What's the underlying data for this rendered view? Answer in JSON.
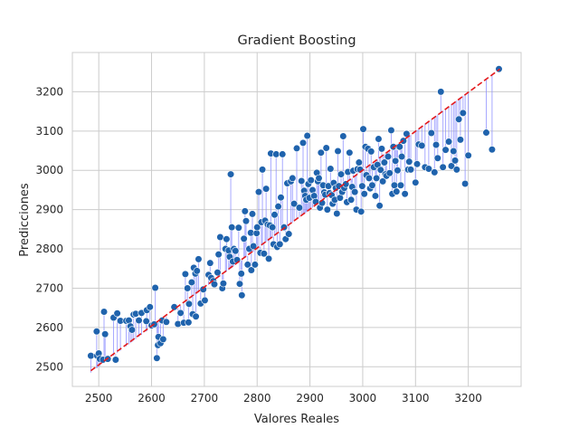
{
  "chart_data": {
    "type": "scatter",
    "title": "Gradient Boosting",
    "xlabel": "Valores Reales",
    "ylabel": "Predicciones",
    "xlim": [
      2450,
      3300
    ],
    "ylim": [
      2450,
      3300
    ],
    "xticks": [
      2500,
      2600,
      2700,
      2800,
      2900,
      3000,
      3100,
      3200
    ],
    "yticks": [
      2500,
      2600,
      2700,
      2800,
      2900,
      3000,
      3100,
      3200
    ],
    "grid": true,
    "reference_line": {
      "style": "dashed",
      "color": "#e41a1c",
      "from": [
        2485,
        2490
      ],
      "to": [
        3260,
        3258
      ]
    },
    "residual_line_color": "#8a8cff",
    "point_color": "#1f63ad",
    "points": [
      [
        2485,
        2528
      ],
      [
        2496,
        2590
      ],
      [
        2497,
        2528
      ],
      [
        2500,
        2534
      ],
      [
        2502,
        2520
      ],
      [
        2508,
        2518
      ],
      [
        2510,
        2640
      ],
      [
        2512,
        2583
      ],
      [
        2517,
        2520
      ],
      [
        2528,
        2625
      ],
      [
        2532,
        2518
      ],
      [
        2535,
        2636
      ],
      [
        2541,
        2617
      ],
      [
        2552,
        2617
      ],
      [
        2557,
        2618
      ],
      [
        2560,
        2603
      ],
      [
        2563,
        2594
      ],
      [
        2566,
        2633
      ],
      [
        2570,
        2635
      ],
      [
        2576,
        2618
      ],
      [
        2581,
        2637
      ],
      [
        2590,
        2616
      ],
      [
        2591,
        2644
      ],
      [
        2597,
        2652
      ],
      [
        2600,
        2605
      ],
      [
        2605,
        2608
      ],
      [
        2607,
        2701
      ],
      [
        2610,
        2522
      ],
      [
        2612,
        2555
      ],
      [
        2613,
        2576
      ],
      [
        2617,
        2560
      ],
      [
        2620,
        2618
      ],
      [
        2622,
        2570
      ],
      [
        2628,
        2614
      ],
      [
        2643,
        2652
      ],
      [
        2650,
        2609
      ],
      [
        2655,
        2637
      ],
      [
        2661,
        2612
      ],
      [
        2664,
        2736
      ],
      [
        2668,
        2700
      ],
      [
        2670,
        2613
      ],
      [
        2671,
        2660
      ],
      [
        2676,
        2715
      ],
      [
        2678,
        2634
      ],
      [
        2680,
        2752
      ],
      [
        2683,
        2737
      ],
      [
        2684,
        2628
      ],
      [
        2686,
        2744
      ],
      [
        2689,
        2774
      ],
      [
        2693,
        2661
      ],
      [
        2698,
        2697
      ],
      [
        2701,
        2669
      ],
      [
        2708,
        2734
      ],
      [
        2711,
        2764
      ],
      [
        2713,
        2726
      ],
      [
        2717,
        2718
      ],
      [
        2719,
        2710
      ],
      [
        2725,
        2740
      ],
      [
        2727,
        2786
      ],
      [
        2730,
        2830
      ],
      [
        2734,
        2700
      ],
      [
        2736,
        2712
      ],
      [
        2740,
        2800
      ],
      [
        2742,
        2825
      ],
      [
        2746,
        2796
      ],
      [
        2748,
        2780
      ],
      [
        2750,
        2990
      ],
      [
        2752,
        2855
      ],
      [
        2754,
        2768
      ],
      [
        2756,
        2800
      ],
      [
        2759,
        2795
      ],
      [
        2762,
        2772
      ],
      [
        2765,
        2854
      ],
      [
        2767,
        2711
      ],
      [
        2770,
        2737
      ],
      [
        2771,
        2682
      ],
      [
        2775,
        2826
      ],
      [
        2777,
        2896
      ],
      [
        2779,
        2871
      ],
      [
        2782,
        2760
      ],
      [
        2785,
        2800
      ],
      [
        2788,
        2841
      ],
      [
        2789,
        2746
      ],
      [
        2791,
        2889
      ],
      [
        2793,
        2807
      ],
      [
        2796,
        2760
      ],
      [
        2799,
        2840
      ],
      [
        2800,
        2855
      ],
      [
        2803,
        2945
      ],
      [
        2806,
        2790
      ],
      [
        2808,
        2868
      ],
      [
        2810,
        3002
      ],
      [
        2813,
        2788
      ],
      [
        2815,
        2872
      ],
      [
        2817,
        2953
      ],
      [
        2820,
        2862
      ],
      [
        2822,
        2775
      ],
      [
        2824,
        2860
      ],
      [
        2826,
        3043
      ],
      [
        2829,
        2855
      ],
      [
        2831,
        2812
      ],
      [
        2833,
        2887
      ],
      [
        2836,
        3041
      ],
      [
        2838,
        2805
      ],
      [
        2840,
        2908
      ],
      [
        2843,
        2812
      ],
      [
        2845,
        2931
      ],
      [
        2848,
        3041
      ],
      [
        2851,
        2855
      ],
      [
        2854,
        2825
      ],
      [
        2857,
        2967
      ],
      [
        2860,
        2838
      ],
      [
        2864,
        2972
      ],
      [
        2867,
        2980
      ],
      [
        2870,
        2915
      ],
      [
        2875,
        3056
      ],
      [
        2880,
        2905
      ],
      [
        2884,
        2973
      ],
      [
        2887,
        3070
      ],
      [
        2889,
        2948
      ],
      [
        2891,
        2935
      ],
      [
        2893,
        2925
      ],
      [
        2895,
        3088
      ],
      [
        2897,
        2965
      ],
      [
        2899,
        2930
      ],
      [
        2902,
        2975
      ],
      [
        2905,
        2950
      ],
      [
        2908,
        2935
      ],
      [
        2911,
        2920
      ],
      [
        2913,
        2994
      ],
      [
        2915,
        2972
      ],
      [
        2917,
        2980
      ],
      [
        2919,
        2905
      ],
      [
        2921,
        3045
      ],
      [
        2923,
        2917
      ],
      [
        2925,
        2962
      ],
      [
        2927,
        2944
      ],
      [
        2929,
        2938
      ],
      [
        2931,
        3057
      ],
      [
        2933,
        2900
      ],
      [
        2935,
        2960
      ],
      [
        2937,
        2942
      ],
      [
        2939,
        3004
      ],
      [
        2941,
        2937
      ],
      [
        2943,
        2915
      ],
      [
        2945,
        2968
      ],
      [
        2947,
        2925
      ],
      [
        2949,
        2955
      ],
      [
        2951,
        2890
      ],
      [
        2953,
        3049
      ],
      [
        2955,
        2960
      ],
      [
        2957,
        2930
      ],
      [
        2959,
        2990
      ],
      [
        2961,
        2945
      ],
      [
        2963,
        3087
      ],
      [
        2965,
        2955
      ],
      [
        2968,
        2965
      ],
      [
        2970,
        2919
      ],
      [
        2972,
        2996
      ],
      [
        2975,
        3045
      ],
      [
        2978,
        2925
      ],
      [
        2980,
        2958
      ],
      [
        2982,
        2999
      ],
      [
        2985,
        2945
      ],
      [
        2988,
        2900
      ],
      [
        2990,
        3003
      ],
      [
        2993,
        3020
      ],
      [
        2995,
        3002
      ],
      [
        2997,
        2895
      ],
      [
        2999,
        2960
      ],
      [
        3001,
        3105
      ],
      [
        3003,
        2940
      ],
      [
        3005,
        3060
      ],
      [
        3007,
        2988
      ],
      [
        3010,
        3055
      ],
      [
        3012,
        2980
      ],
      [
        3014,
        2954
      ],
      [
        3016,
        3048
      ],
      [
        3018,
        2962
      ],
      [
        3021,
        3008
      ],
      [
        3024,
        2935
      ],
      [
        3026,
        2980
      ],
      [
        3028,
        3014
      ],
      [
        3030,
        3080
      ],
      [
        3032,
        2910
      ],
      [
        3034,
        3001
      ],
      [
        3036,
        3055
      ],
      [
        3038,
        2972
      ],
      [
        3041,
        3020
      ],
      [
        3043,
        2990
      ],
      [
        3045,
        2986
      ],
      [
        3048,
        3035
      ],
      [
        3051,
        2993
      ],
      [
        3054,
        3102
      ],
      [
        3056,
        2940
      ],
      [
        3058,
        3060
      ],
      [
        3060,
        2962
      ],
      [
        3062,
        3024
      ],
      [
        3064,
        2946
      ],
      [
        3066,
        3000
      ],
      [
        3068,
        3060
      ],
      [
        3070,
        3060
      ],
      [
        3072,
        2962
      ],
      [
        3074,
        3035
      ],
      [
        3077,
        3075
      ],
      [
        3080,
        2940
      ],
      [
        3083,
        3093
      ],
      [
        3086,
        3002
      ],
      [
        3088,
        3022
      ],
      [
        3091,
        3002
      ],
      [
        3100,
        2969
      ],
      [
        3103,
        3016
      ],
      [
        3106,
        3066
      ],
      [
        3112,
        3063
      ],
      [
        3118,
        3008
      ],
      [
        3125,
        3004
      ],
      [
        3130,
        3095
      ],
      [
        3136,
        2995
      ],
      [
        3139,
        3065
      ],
      [
        3142,
        3031
      ],
      [
        3148,
        3200
      ],
      [
        3152,
        3008
      ],
      [
        3157,
        3052
      ],
      [
        3163,
        3073
      ],
      [
        3168,
        3011
      ],
      [
        3172,
        3049
      ],
      [
        3175,
        3025
      ],
      [
        3178,
        3002
      ],
      [
        3182,
        3130
      ],
      [
        3185,
        3078
      ],
      [
        3190,
        3146
      ],
      [
        3194,
        2966
      ],
      [
        3200,
        3038
      ],
      [
        3234,
        3096
      ],
      [
        3245,
        3053
      ],
      [
        3258,
        3258
      ]
    ]
  }
}
